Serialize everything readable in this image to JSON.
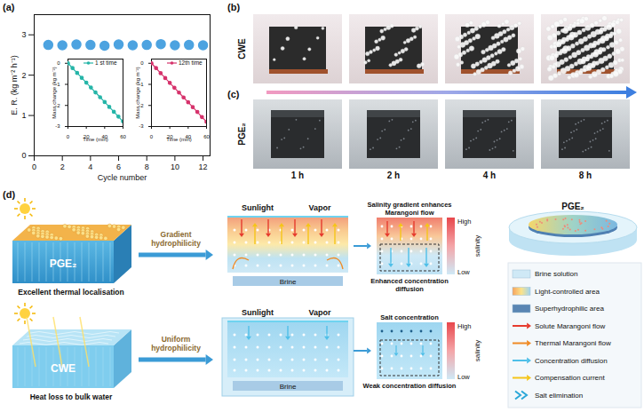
{
  "panel_labels": [
    "(a)",
    "(b)",
    "(c)",
    "(d)"
  ],
  "chart_data": [
    {
      "type": "scatter",
      "xlabel": "Cycle number",
      "ylabel": "E. R. (kg m⁻² h⁻¹)",
      "x": [
        1,
        2,
        3,
        4,
        5,
        6,
        7,
        8,
        9,
        10,
        11,
        12
      ],
      "values": [
        2.75,
        2.74,
        2.76,
        2.75,
        2.73,
        2.76,
        2.74,
        2.75,
        2.77,
        2.74,
        2.75,
        2.74
      ],
      "color": "#4da3e0",
      "marker": "circle",
      "xlim": [
        0,
        12.5
      ],
      "xticks": [
        0,
        2,
        4,
        6,
        8,
        10,
        12
      ],
      "ylim": [
        0,
        3.5
      ],
      "yticks": [
        0,
        1,
        2,
        3
      ],
      "grid": false
    },
    {
      "type": "line",
      "xlabel": "Time (min)",
      "ylabel": "Mass change (kg m⁻²)",
      "x": [
        0,
        5,
        10,
        15,
        20,
        25,
        30,
        35,
        40,
        45,
        50,
        55,
        60
      ],
      "series": [
        {
          "name": "1 st time",
          "color": "#26b5a8",
          "marker": "circle",
          "values": [
            0,
            -0.23,
            -0.46,
            -0.69,
            -0.92,
            -1.15,
            -1.38,
            -1.61,
            -1.84,
            -2.07,
            -2.3,
            -2.53,
            -2.76
          ]
        }
      ],
      "xlim": [
        0,
        60
      ],
      "xticks": [
        0,
        20,
        40,
        60
      ],
      "ylim": [
        -3,
        0.2
      ],
      "yticks": [
        -3,
        -2,
        -1,
        0
      ],
      "legend": "top-right",
      "grid": false
    },
    {
      "type": "line",
      "xlabel": "Time (min)",
      "ylabel": "Mass change (kg m⁻²)",
      "x": [
        0,
        5,
        10,
        15,
        20,
        25,
        30,
        35,
        40,
        45,
        50,
        55,
        60
      ],
      "series": [
        {
          "name": "12th time",
          "color": "#d6336c",
          "marker": "circle",
          "values": [
            0,
            -0.23,
            -0.47,
            -0.7,
            -0.93,
            -1.16,
            -1.39,
            -1.62,
            -1.85,
            -2.08,
            -2.31,
            -2.55,
            -2.78
          ]
        }
      ],
      "xlim": [
        0,
        60
      ],
      "xticks": [
        0,
        20,
        40,
        60
      ],
      "ylim": [
        -3,
        0.2
      ],
      "yticks": [
        -3,
        -2,
        -1,
        0
      ],
      "legend": "top-right",
      "grid": false
    }
  ],
  "photos": {
    "rows": [
      {
        "label": "CWE"
      },
      {
        "label": "PGE₂"
      }
    ],
    "columns": [
      "1 h",
      "2 h",
      "4 h",
      "8 h"
    ]
  },
  "schematic": {
    "rows": [
      {
        "material": "PGE₂",
        "caption": "Excellent thermal localisation",
        "arrow_label": "Gradient hydrophilicity",
        "top_labels": [
          "Sunlight",
          "Vapor"
        ],
        "base": "Brine",
        "zoom_title": "Salinity gradient enhances Marangoni flow",
        "zoom_caption": "Enhanced concentration diffusion"
      },
      {
        "material": "CWE",
        "caption": "Heat loss to bulk water",
        "arrow_label": "Uniform hydrophilicity",
        "top_labels": [
          "Sunlight",
          "Vapor"
        ],
        "base": "Brine",
        "zoom_title": "Salt concentration",
        "zoom_caption": "Weak concentration diffusion"
      }
    ],
    "salinity_bar": {
      "title": "salinity",
      "high": "High",
      "low": "Low"
    },
    "model_label": "PGE₂",
    "legend": [
      {
        "label": "Brine solution",
        "marker": "rect",
        "color": "#cfe9f6"
      },
      {
        "label": "Light-controlled area",
        "marker": "rect",
        "colors": [
          "#f7a35c",
          "#fbe38b",
          "#9fd4f0"
        ]
      },
      {
        "label": "Superhydrophilic area",
        "marker": "rect",
        "color": "#5a86b3"
      },
      {
        "label": "Solute Marangoni flow",
        "marker": "arrow",
        "color": "#e63b2e"
      },
      {
        "label": "Thermal Marangoni flow",
        "marker": "arrow",
        "color": "#f08a24"
      },
      {
        "label": "Concentration diffusion",
        "marker": "arrow",
        "color": "#4fbfe8"
      },
      {
        "label": "Compensation current",
        "marker": "arrow",
        "color": "#f5c518"
      },
      {
        "label": "Salt elimination",
        "marker": "chevron",
        "color": "#2aa7d8"
      }
    ]
  }
}
